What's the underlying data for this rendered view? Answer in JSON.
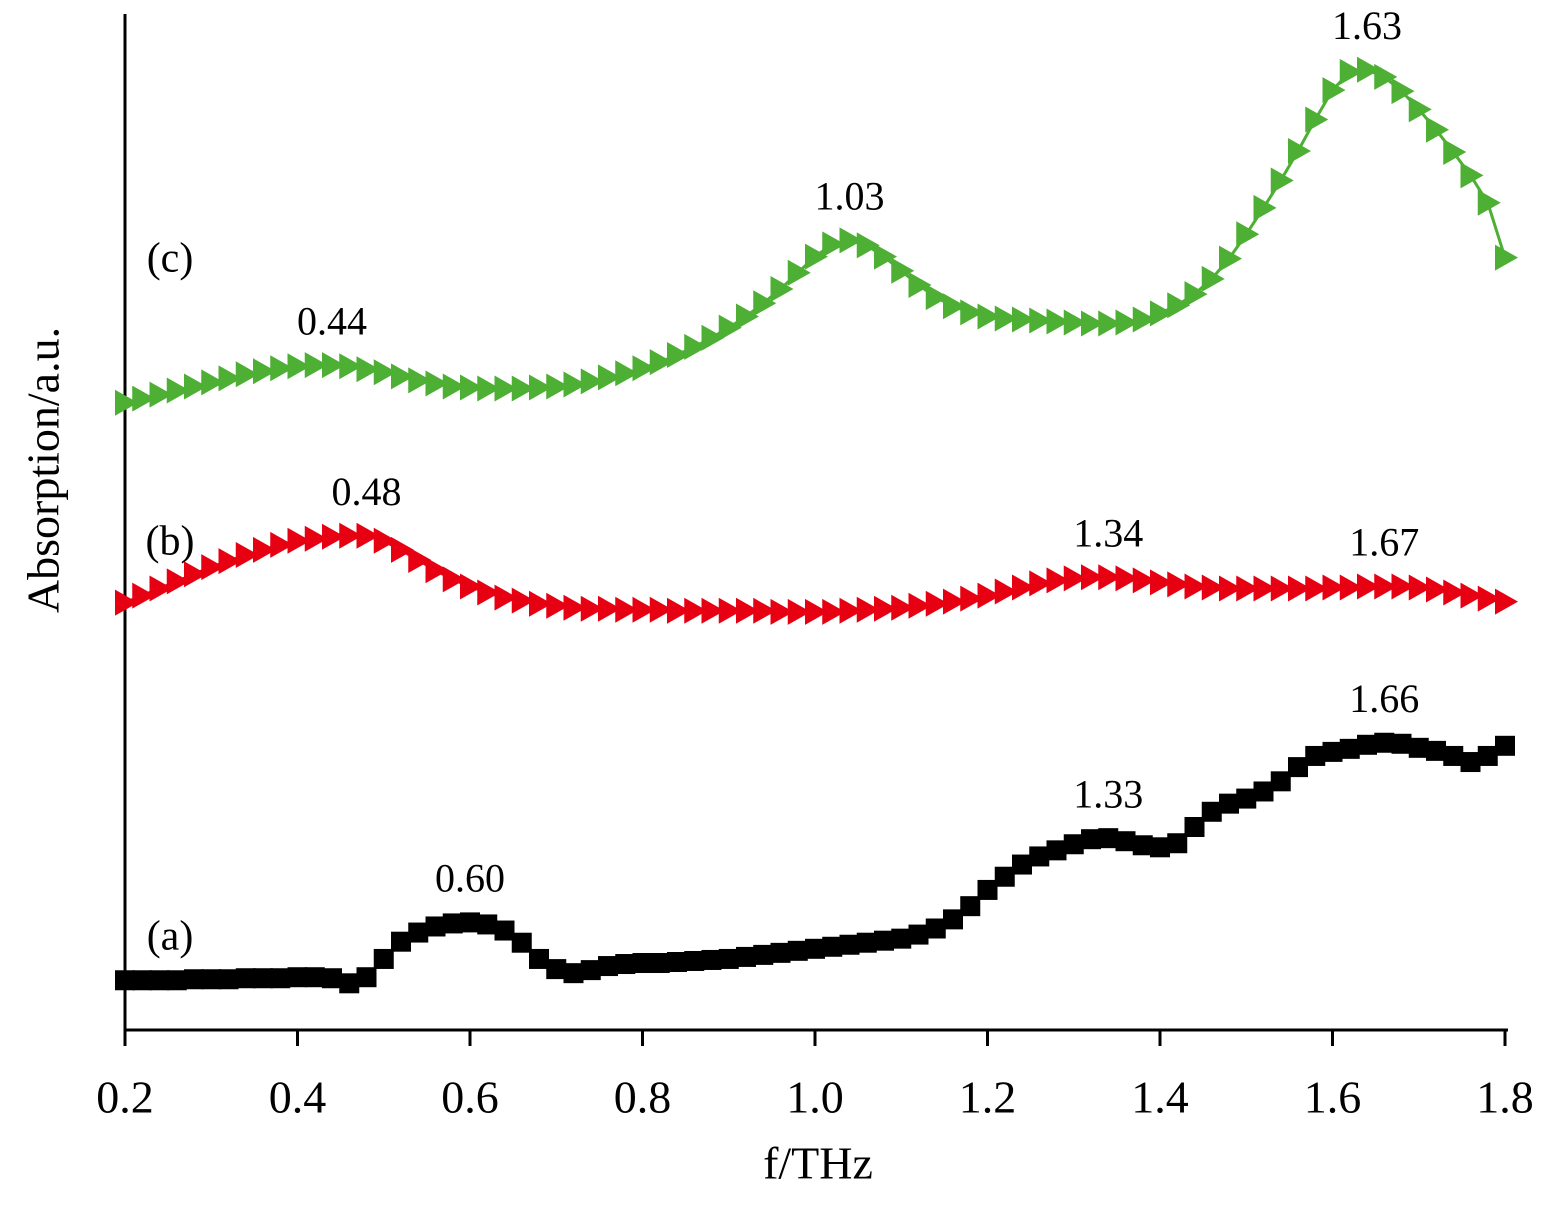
{
  "chart_data": {
    "type": "line",
    "xlabel": "f/THz",
    "ylabel": "Absorption/a.u.",
    "xlim": [
      0.2,
      1.8
    ],
    "ylim": [
      0,
      100
    ],
    "xticks": [
      0.2,
      0.4,
      0.6,
      0.8,
      {
        "value": 1,
        "label": "1.0"
      },
      1.2,
      1.4,
      1.6,
      1.8
    ],
    "x": [
      0.2,
      0.22,
      0.24,
      0.26,
      0.28,
      0.3,
      0.32,
      0.34,
      0.36,
      0.38,
      0.4,
      0.42,
      0.44,
      0.46,
      0.48,
      0.5,
      0.52,
      0.54,
      0.56,
      0.58,
      0.6,
      0.62,
      0.64,
      0.66,
      0.68,
      0.7,
      0.72,
      0.74,
      0.76,
      0.78,
      0.8,
      0.82,
      0.84,
      0.86,
      0.88,
      0.9,
      0.92,
      0.94,
      0.96,
      0.98,
      1.0,
      1.02,
      1.04,
      1.06,
      1.08,
      1.1,
      1.12,
      1.14,
      1.16,
      1.18,
      1.2,
      1.22,
      1.24,
      1.26,
      1.28,
      1.3,
      1.32,
      1.34,
      1.36,
      1.38,
      1.4,
      1.42,
      1.44,
      1.46,
      1.48,
      1.5,
      1.52,
      1.54,
      1.56,
      1.58,
      1.6,
      1.62,
      1.64,
      1.66,
      1.68,
      1.7,
      1.72,
      1.74,
      1.76,
      1.78,
      1.8
    ],
    "series": [
      {
        "name": "(a)",
        "color": "#000000",
        "marker": "square",
        "values": [
          4.9,
          4.9,
          4.9,
          4.9,
          5.0,
          5.0,
          5.0,
          5.1,
          5.1,
          5.1,
          5.2,
          5.2,
          5.1,
          4.6,
          5.2,
          7.0,
          8.7,
          9.6,
          10.2,
          10.5,
          10.6,
          10.4,
          9.8,
          8.6,
          7.0,
          6.0,
          5.6,
          5.9,
          6.3,
          6.5,
          6.6,
          6.6,
          6.7,
          6.8,
          6.9,
          7.0,
          7.2,
          7.4,
          7.6,
          7.8,
          8.0,
          8.2,
          8.4,
          8.6,
          8.8,
          9.0,
          9.4,
          10.0,
          10.9,
          12.2,
          13.8,
          15.1,
          16.3,
          17.1,
          17.7,
          18.3,
          18.8,
          18.9,
          18.6,
          18.2,
          18.0,
          18.4,
          20.0,
          21.5,
          22.3,
          22.8,
          23.5,
          24.5,
          25.9,
          27.0,
          27.4,
          27.7,
          28.1,
          28.3,
          28.2,
          27.8,
          27.5,
          27.0,
          26.4,
          27.0,
          28.0
        ]
      },
      {
        "name": "(b)",
        "color": "#e60012",
        "marker": "triangle-right",
        "values": [
          42.1,
          42.8,
          43.5,
          44.2,
          44.9,
          45.6,
          46.2,
          46.8,
          47.3,
          47.8,
          48.2,
          48.4,
          48.6,
          48.7,
          48.7,
          48.2,
          47.3,
          46.3,
          45.3,
          44.4,
          43.7,
          43.1,
          42.6,
          42.3,
          42.0,
          41.8,
          41.6,
          41.5,
          41.5,
          41.4,
          41.4,
          41.4,
          41.3,
          41.3,
          41.3,
          41.3,
          41.3,
          41.3,
          41.2,
          41.2,
          41.2,
          41.2,
          41.3,
          41.4,
          41.5,
          41.6,
          41.8,
          42.0,
          42.2,
          42.5,
          42.8,
          43.2,
          43.6,
          44.0,
          44.3,
          44.5,
          44.6,
          44.6,
          44.5,
          44.3,
          44.1,
          43.9,
          43.7,
          43.6,
          43.5,
          43.5,
          43.5,
          43.5,
          43.5,
          43.5,
          43.6,
          43.6,
          43.7,
          43.7,
          43.7,
          43.6,
          43.4,
          43.1,
          42.8,
          42.5,
          42.2
        ]
      },
      {
        "name": "(c)",
        "color": "#4daf33",
        "marker": "triangle-right",
        "values": [
          61.8,
          62.2,
          62.6,
          63.0,
          63.4,
          63.8,
          64.2,
          64.6,
          64.9,
          65.2,
          65.4,
          65.5,
          65.5,
          65.4,
          65.1,
          64.8,
          64.4,
          64.0,
          63.7,
          63.4,
          63.3,
          63.2,
          63.2,
          63.2,
          63.3,
          63.4,
          63.6,
          63.9,
          64.3,
          64.7,
          65.2,
          65.8,
          66.5,
          67.3,
          68.2,
          69.2,
          70.3,
          71.6,
          73.0,
          74.6,
          76.2,
          77.4,
          77.8,
          77.3,
          76.2,
          74.8,
          73.4,
          72.2,
          71.3,
          70.7,
          70.3,
          70.1,
          70.0,
          69.9,
          69.8,
          69.7,
          69.6,
          69.6,
          69.7,
          70.0,
          70.6,
          71.4,
          72.5,
          74.0,
          76.0,
          78.4,
          81.0,
          83.7,
          86.6,
          89.7,
          92.6,
          94.4,
          94.6,
          93.9,
          92.5,
          90.7,
          88.7,
          86.5,
          84.2,
          81.5,
          76.1
        ]
      }
    ],
    "annotations": [
      {
        "text": "0.60",
        "series": 0,
        "x": 0.6
      },
      {
        "text": "1.33",
        "series": 0,
        "x": 1.34
      },
      {
        "text": "1.66",
        "series": 0,
        "x": 1.66
      },
      {
        "text": "0.48",
        "series": 1,
        "x": 0.48
      },
      {
        "text": "1.34",
        "series": 1,
        "x": 1.34
      },
      {
        "text": "1.67",
        "series": 1,
        "x": 1.66
      },
      {
        "text": "0.44",
        "series": 2,
        "x": 0.44
      },
      {
        "text": "1.03",
        "series": 2,
        "x": 1.04
      },
      {
        "text": "1.63",
        "series": 2,
        "x": 1.64
      }
    ]
  }
}
